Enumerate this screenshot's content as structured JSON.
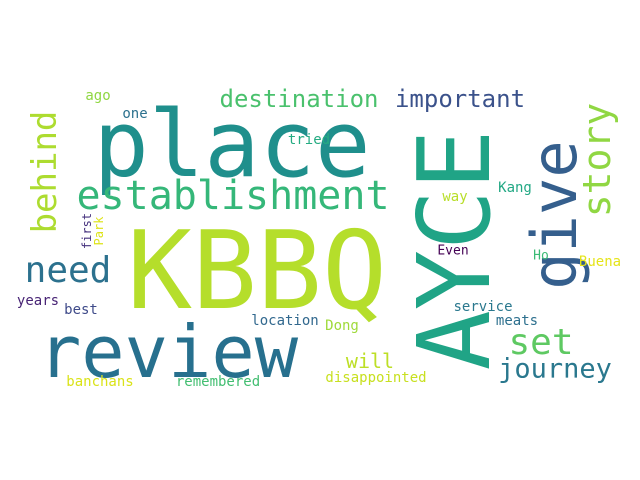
{
  "word_cloud": {
    "background": "#ffffff",
    "words": [
      {
        "id": "place",
        "text": "place",
        "color": "#1f8f8c",
        "orientation": "horizontal"
      },
      {
        "id": "kbbq",
        "text": "KBBQ",
        "color": "#b5de2b",
        "orientation": "horizontal"
      },
      {
        "id": "ayce",
        "text": "AYCE",
        "color": "#20a486",
        "orientation": "vertical"
      },
      {
        "id": "review",
        "text": "review",
        "color": "#27708e",
        "orientation": "horizontal"
      },
      {
        "id": "give",
        "text": "give",
        "color": "#355f8d",
        "orientation": "vertical"
      },
      {
        "id": "establishment",
        "text": "establishment",
        "color": "#35b779",
        "orientation": "horizontal"
      },
      {
        "id": "behind",
        "text": "behind",
        "color": "#addc30",
        "orientation": "vertical"
      },
      {
        "id": "story",
        "text": "story",
        "color": "#90d743",
        "orientation": "vertical"
      },
      {
        "id": "need",
        "text": "need",
        "color": "#2c718e",
        "orientation": "horizontal"
      },
      {
        "id": "set",
        "text": "set",
        "color": "#5ec962",
        "orientation": "horizontal"
      },
      {
        "id": "journey",
        "text": "journey",
        "color": "#2a788e",
        "orientation": "horizontal"
      },
      {
        "id": "destination",
        "text": "destination",
        "color": "#4ac16d",
        "orientation": "horizontal"
      },
      {
        "id": "important",
        "text": "important",
        "color": "#3b528b",
        "orientation": "horizontal"
      },
      {
        "id": "will",
        "text": "will",
        "color": "#bddf26",
        "orientation": "horizontal"
      },
      {
        "id": "ago",
        "text": "ago",
        "color": "#90d743",
        "orientation": "horizontal"
      },
      {
        "id": "one",
        "text": "one",
        "color": "#2c718e",
        "orientation": "horizontal"
      },
      {
        "id": "tried",
        "text": "tried",
        "color": "#25ab82",
        "orientation": "horizontal"
      },
      {
        "id": "way",
        "text": "way",
        "color": "#b8de29",
        "orientation": "horizontal"
      },
      {
        "id": "kang",
        "text": "Kang",
        "color": "#22a884",
        "orientation": "horizontal"
      },
      {
        "id": "first",
        "text": "first",
        "color": "#46327e",
        "orientation": "vertical"
      },
      {
        "id": "park",
        "text": "Park",
        "color": "#dde318",
        "orientation": "vertical"
      },
      {
        "id": "even",
        "text": "Even",
        "color": "#440154",
        "orientation": "horizontal"
      },
      {
        "id": "ho",
        "text": "Ho",
        "color": "#3bbb75",
        "orientation": "horizontal"
      },
      {
        "id": "buena",
        "text": "Buena",
        "color": "#e5e419",
        "orientation": "horizontal"
      },
      {
        "id": "years",
        "text": "years",
        "color": "#482475",
        "orientation": "horizontal"
      },
      {
        "id": "best",
        "text": "best",
        "color": "#3e4a89",
        "orientation": "horizontal"
      },
      {
        "id": "service",
        "text": "service",
        "color": "#2a788e",
        "orientation": "horizontal"
      },
      {
        "id": "location",
        "text": "location",
        "color": "#31688e",
        "orientation": "horizontal"
      },
      {
        "id": "dong",
        "text": "Dong",
        "color": "#9fda3a",
        "orientation": "horizontal"
      },
      {
        "id": "meats",
        "text": "meats",
        "color": "#2d708e",
        "orientation": "horizontal"
      },
      {
        "id": "banchans",
        "text": "banchans",
        "color": "#dae319",
        "orientation": "horizontal"
      },
      {
        "id": "remembered",
        "text": "remembered",
        "color": "#42be71",
        "orientation": "horizontal"
      },
      {
        "id": "disappointed",
        "text": "disappointed",
        "color": "#c8e020",
        "orientation": "horizontal"
      }
    ]
  }
}
